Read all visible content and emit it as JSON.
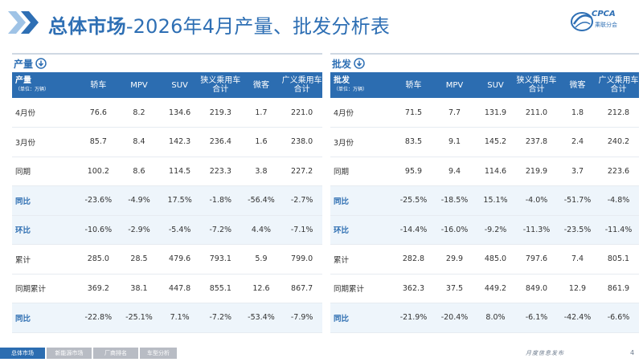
{
  "header": {
    "title_bold": "总体市场",
    "title_rest": "-2026年4月产量、批发分析表",
    "logo_text": "CPCA",
    "logo_sub": "乘联分会"
  },
  "colors": {
    "accent": "#2c6db1",
    "title": "#2e6fb4",
    "pct_row_bg": "#eef5fb"
  },
  "columns": [
    "轿车",
    "MPV",
    "SUV",
    "狭义乘用车合计",
    "微客",
    "广义乘用车合计"
  ],
  "production": {
    "section_label": "产量",
    "corner_title": "产量",
    "corner_unit": "（单位：万辆）",
    "rows": [
      {
        "label": "4月份",
        "pct": false,
        "values": [
          "76.6",
          "8.2",
          "134.6",
          "219.3",
          "1.7",
          "221.0"
        ]
      },
      {
        "label": "3月份",
        "pct": false,
        "values": [
          "85.7",
          "8.4",
          "142.3",
          "236.4",
          "1.6",
          "238.0"
        ]
      },
      {
        "label": "同期",
        "pct": false,
        "values": [
          "100.2",
          "8.6",
          "114.5",
          "223.3",
          "3.8",
          "227.2"
        ]
      },
      {
        "label": "同比",
        "pct": true,
        "values": [
          "-23.6%",
          "-4.9%",
          "17.5%",
          "-1.8%",
          "-56.4%",
          "-2.7%"
        ]
      },
      {
        "label": "环比",
        "pct": true,
        "values": [
          "-10.6%",
          "-2.9%",
          "-5.4%",
          "-7.2%",
          "4.4%",
          "-7.1%"
        ]
      },
      {
        "label": "累计",
        "pct": false,
        "values": [
          "285.0",
          "28.5",
          "479.6",
          "793.1",
          "5.9",
          "799.0"
        ]
      },
      {
        "label": "同期累计",
        "pct": false,
        "values": [
          "369.2",
          "38.1",
          "447.8",
          "855.1",
          "12.6",
          "867.7"
        ]
      },
      {
        "label": "同比",
        "pct": true,
        "values": [
          "-22.8%",
          "-25.1%",
          "7.1%",
          "-7.2%",
          "-53.4%",
          "-7.9%"
        ]
      }
    ]
  },
  "wholesale": {
    "section_label": "批发",
    "corner_title": "批发",
    "corner_unit": "（单位：万辆）",
    "rows": [
      {
        "label": "4月份",
        "pct": false,
        "values": [
          "71.5",
          "7.7",
          "131.9",
          "211.0",
          "1.8",
          "212.8"
        ]
      },
      {
        "label": "3月份",
        "pct": false,
        "values": [
          "83.5",
          "9.1",
          "145.2",
          "237.8",
          "2.4",
          "240.2"
        ]
      },
      {
        "label": "同期",
        "pct": false,
        "values": [
          "95.9",
          "9.4",
          "114.6",
          "219.9",
          "3.7",
          "223.6"
        ]
      },
      {
        "label": "同比",
        "pct": true,
        "values": [
          "-25.5%",
          "-18.5%",
          "15.1%",
          "-4.0%",
          "-51.7%",
          "-4.8%"
        ]
      },
      {
        "label": "环比",
        "pct": true,
        "values": [
          "-14.4%",
          "-16.0%",
          "-9.2%",
          "-11.3%",
          "-23.5%",
          "-11.4%"
        ]
      },
      {
        "label": "累计",
        "pct": false,
        "values": [
          "282.8",
          "29.9",
          "485.0",
          "797.6",
          "7.4",
          "805.1"
        ]
      },
      {
        "label": "同期累计",
        "pct": false,
        "values": [
          "362.3",
          "37.5",
          "449.2",
          "849.0",
          "12.9",
          "861.9"
        ]
      },
      {
        "label": "同比",
        "pct": true,
        "values": [
          "-21.9%",
          "-20.4%",
          "8.0%",
          "-6.1%",
          "-42.4%",
          "-6.6%"
        ]
      }
    ]
  },
  "footer": {
    "tabs": [
      "总体市场",
      "新能源市场",
      "厂商排名",
      "车型分析"
    ],
    "right_text": "月度信息发布",
    "page_number": "4"
  }
}
